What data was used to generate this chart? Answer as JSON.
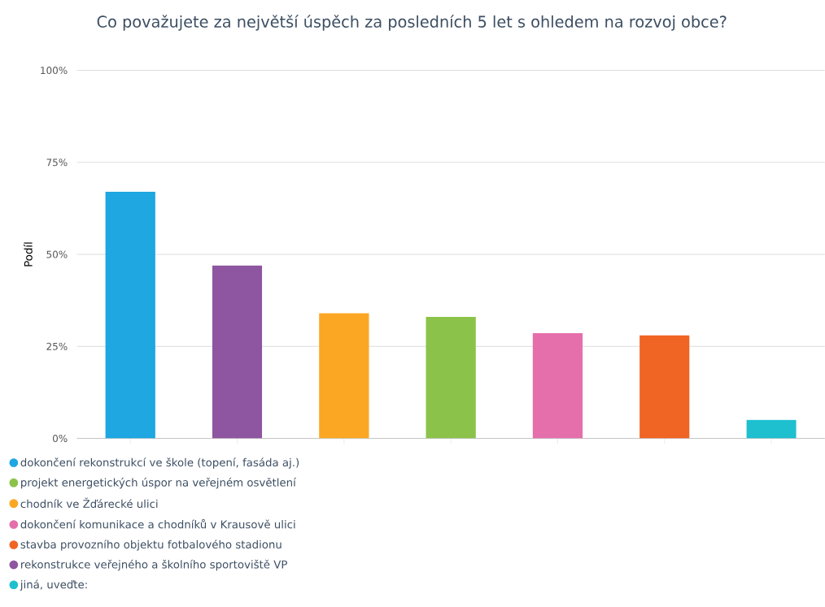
{
  "chart_data": {
    "type": "bar",
    "title": "Co považujete za největší úspěch za posledních 5 let s ohledem na rozvoj obce?",
    "ylabel": "Podíl",
    "categories": [
      null,
      null,
      null,
      null,
      null,
      null,
      null
    ],
    "series": [
      {
        "name": "dokončení rekonstrukcí ve škole (topení, fasáda aj.)",
        "color": "#1ea7e1",
        "values": [
          67,
          null,
          null,
          null,
          null,
          null,
          null
        ]
      },
      {
        "name": "projekt energetických úspor na veřejném osvětlení",
        "color": "#8bc34a",
        "values": [
          null,
          null,
          null,
          33,
          null,
          null,
          null
        ]
      },
      {
        "name": "chodník ve Žďárecké ulici",
        "color": "#fba724",
        "values": [
          null,
          null,
          34,
          null,
          null,
          null,
          null
        ]
      },
      {
        "name": "dokončení komunikace a chodníků v Krausově ulici",
        "color": "#e46fab",
        "values": [
          null,
          null,
          null,
          null,
          28.6,
          null,
          null
        ]
      },
      {
        "name": "stavba provozního objektu fotbalového stadionu",
        "color": "#f06424",
        "values": [
          null,
          null,
          null,
          null,
          null,
          28,
          null
        ]
      },
      {
        "name": "rekonstrukce veřejného a školního sportoviště VP",
        "color": "#8e55a0",
        "values": [
          null,
          47,
          null,
          null,
          null,
          null,
          null
        ]
      },
      {
        "name": "jiná, uveďte:",
        "color": "#1ebfcf",
        "values": [
          null,
          null,
          null,
          null,
          null,
          null,
          5
        ]
      }
    ],
    "ylim": [
      0,
      100
    ],
    "yticks": [
      {
        "value": 0,
        "label": "0%"
      },
      {
        "value": 25,
        "label": "25%"
      },
      {
        "value": 50,
        "label": "50%"
      },
      {
        "value": 75,
        "label": "75%"
      },
      {
        "value": 100,
        "label": "100%"
      }
    ],
    "grid": "y",
    "legend": "bottom"
  }
}
